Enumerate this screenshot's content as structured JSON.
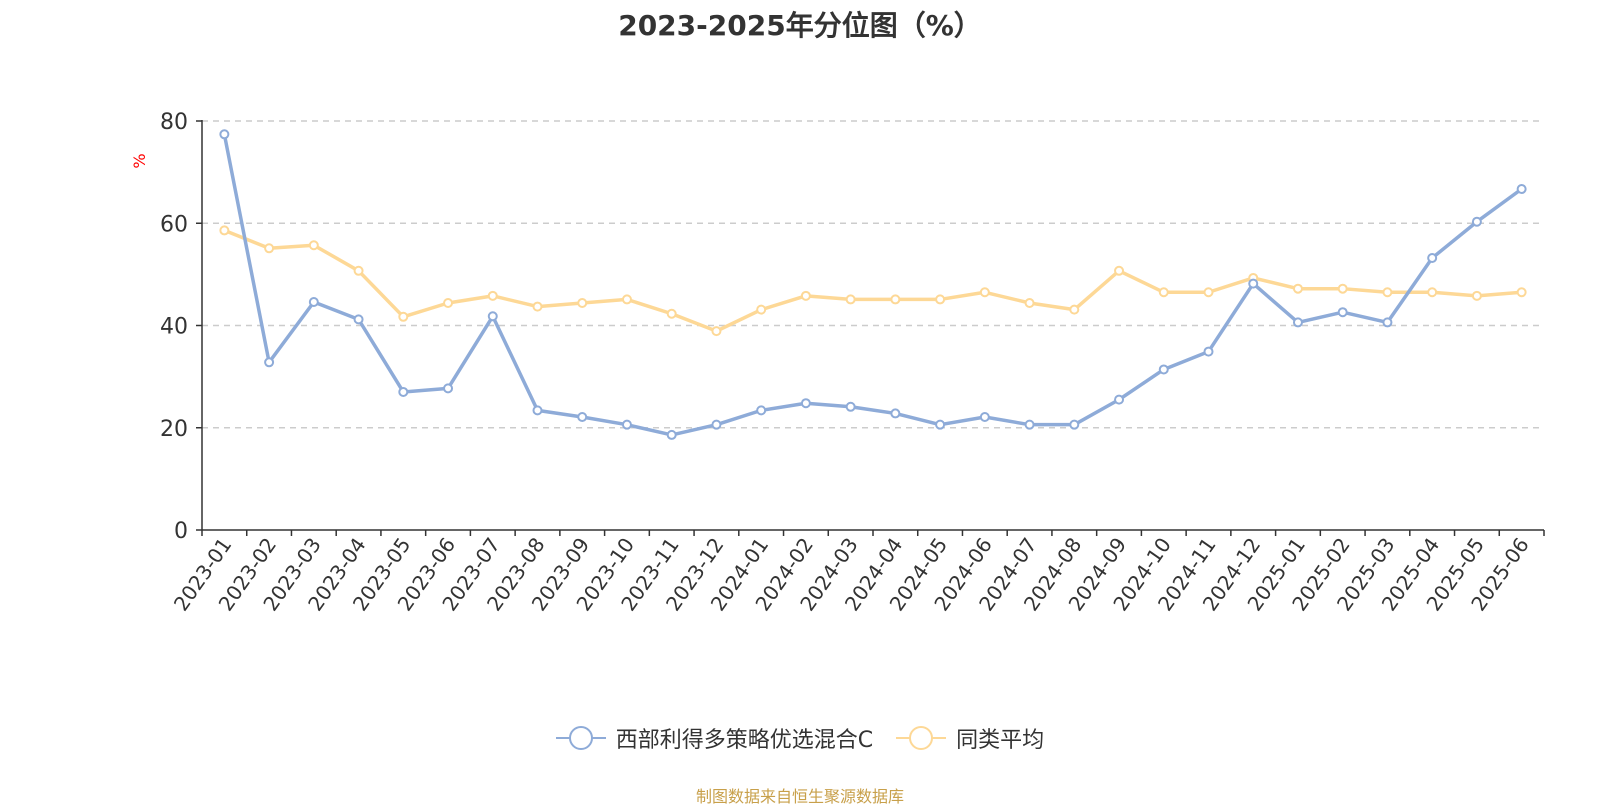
{
  "chart_data": {
    "type": "line",
    "title": "2023-2025年分位图（%）",
    "ylabel": "%",
    "xlabel": "",
    "ylim": [
      0,
      80
    ],
    "y_ticks": [
      0,
      20,
      40,
      60,
      80
    ],
    "grid": true,
    "legend_position": "bottom",
    "categories": [
      "2023-01",
      "2023-02",
      "2023-03",
      "2023-04",
      "2023-05",
      "2023-06",
      "2023-07",
      "2023-08",
      "2023-09",
      "2023-10",
      "2023-11",
      "2023-12",
      "2024-01",
      "2024-02",
      "2024-03",
      "2024-04",
      "2024-05",
      "2024-06",
      "2024-07",
      "2024-08",
      "2024-09",
      "2024-10",
      "2024-11",
      "2024-12",
      "2025-01",
      "2025-02",
      "2025-03",
      "2025-04",
      "2025-05",
      "2025-06"
    ],
    "series": [
      {
        "name": "西部利得多策略优选混合C",
        "color": "#8eabd8",
        "values": [
          77.4,
          32.8,
          44.6,
          41.2,
          27.0,
          27.7,
          41.8,
          23.4,
          22.1,
          20.6,
          18.6,
          20.6,
          23.4,
          24.8,
          24.1,
          22.8,
          20.6,
          22.1,
          20.6,
          20.6,
          25.5,
          31.4,
          34.9,
          48.2,
          40.6,
          42.6,
          40.6,
          53.2,
          60.3,
          66.7
        ]
      },
      {
        "name": "同类平均",
        "color": "#fdd896",
        "values": [
          58.6,
          55.1,
          55.7,
          50.7,
          41.7,
          44.4,
          45.8,
          43.7,
          44.4,
          45.1,
          42.3,
          38.9,
          43.1,
          45.8,
          45.1,
          45.1,
          45.1,
          46.5,
          44.4,
          43.1,
          50.7,
          46.5,
          46.5,
          49.3,
          47.2,
          47.2,
          46.5,
          46.5,
          45.8,
          46.5
        ]
      }
    ]
  },
  "source_note": "制图数据来自恒生聚源数据库",
  "colors": {
    "axis": "#333333",
    "grid": "#cccccc",
    "ylabel": "#ff0000",
    "source": "#c8a04a"
  }
}
